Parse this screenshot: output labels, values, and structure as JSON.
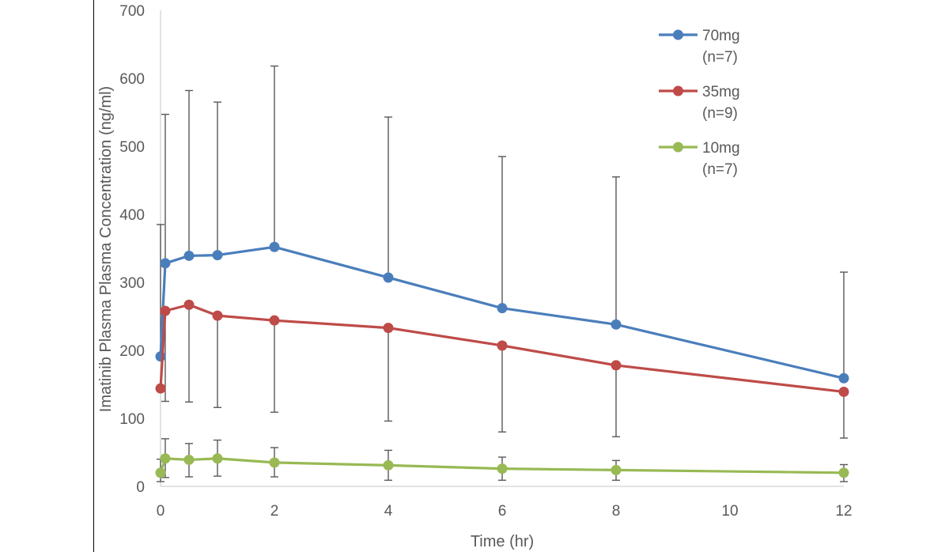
{
  "chart_data": {
    "type": "line",
    "title": "",
    "xlabel": "Time (hr)",
    "ylabel": "Imatinib Plasma Plasma Concentration (ng/ml)",
    "xlim": [
      0,
      12
    ],
    "ylim": [
      0,
      700
    ],
    "xticks": [
      0,
      2,
      4,
      6,
      8,
      10,
      12
    ],
    "yticks": [
      0,
      100,
      200,
      300,
      400,
      500,
      600,
      700
    ],
    "grid": false,
    "legend_position": "top-right",
    "x": [
      0,
      0.083,
      0.5,
      1,
      2,
      4,
      6,
      8,
      12
    ],
    "series": [
      {
        "name": "70mg",
        "name_line2": "(n=7)",
        "color": "#4a7ebb",
        "values": [
          191,
          328,
          339,
          340,
          352,
          307,
          262,
          238,
          159
        ],
        "error_upper": [
          385,
          547,
          582,
          565,
          618,
          543,
          485,
          455,
          315
        ]
      },
      {
        "name": "35mg",
        "name_line2": "(n=9)",
        "color": "#be4b48",
        "values": [
          144,
          258,
          267,
          251,
          244,
          233,
          207,
          178,
          139
        ],
        "error_lower": [
          null,
          125,
          124,
          116,
          109,
          96,
          80,
          73,
          71
        ]
      },
      {
        "name": "10mg",
        "name_line2": "(n=7)",
        "color": "#98b954",
        "values": [
          20,
          41,
          39,
          41,
          35,
          31,
          26,
          24,
          20
        ],
        "error_upper": [
          40,
          70,
          63,
          68,
          57,
          53,
          43,
          38,
          32
        ],
        "error_lower": [
          7,
          13,
          14,
          15,
          14,
          9,
          9,
          9,
          7
        ]
      }
    ]
  }
}
